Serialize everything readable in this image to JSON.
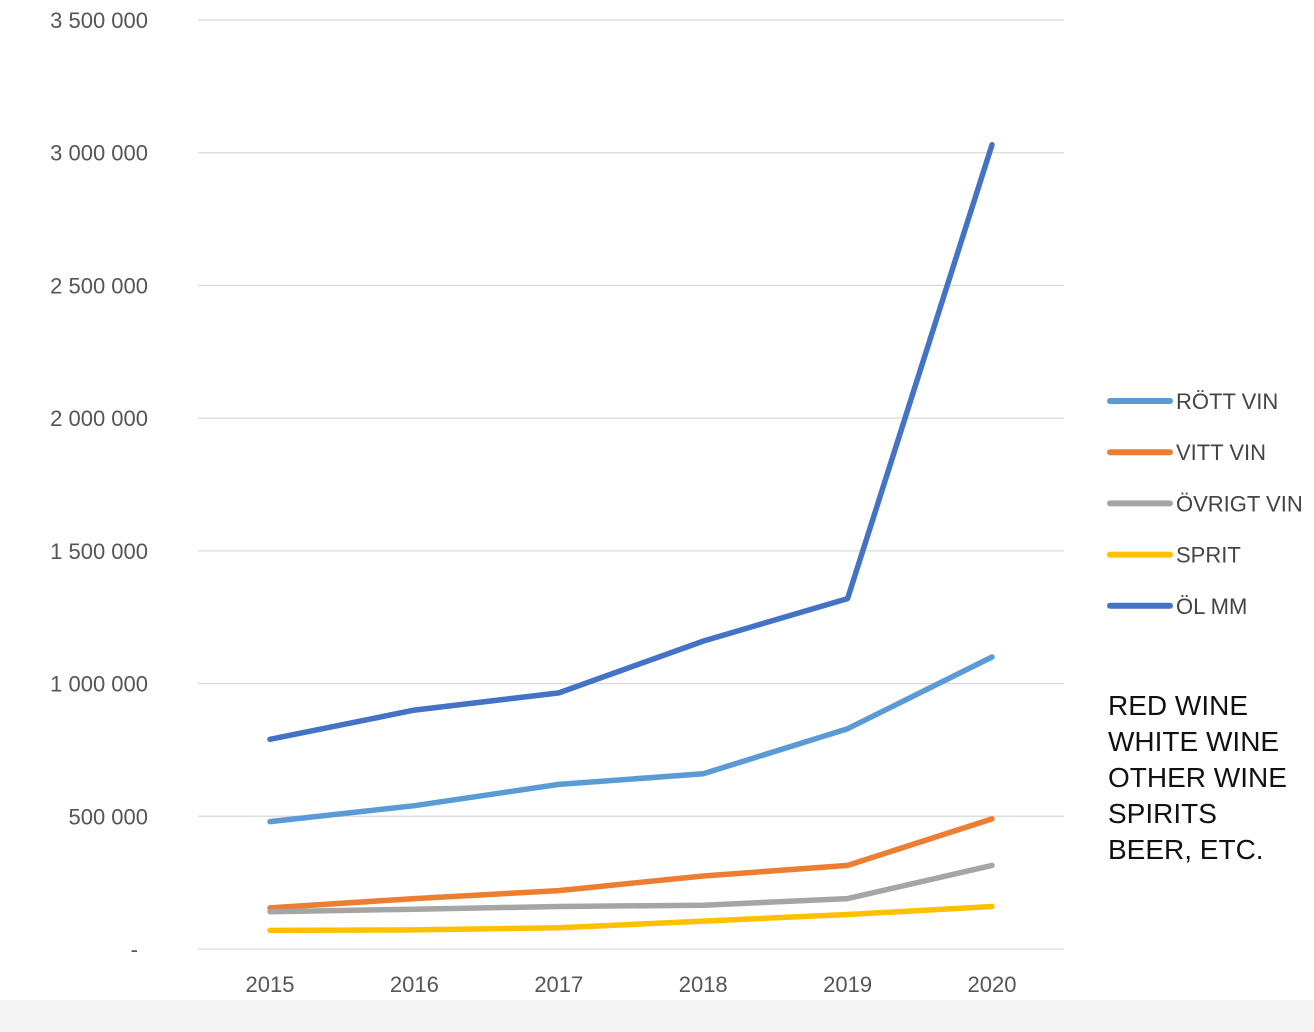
{
  "chart_data": {
    "type": "line",
    "categories": [
      "2015",
      "2016",
      "2017",
      "2018",
      "2019",
      "2020"
    ],
    "y_tick_labels": [
      "-",
      "500 000",
      "1 000 000",
      "1 500 000",
      "2 000 000",
      "2 500 000",
      "3 000 000",
      "3 500 000"
    ],
    "ylim": [
      0,
      3500000
    ],
    "grid": true,
    "legend_position": "right",
    "series": [
      {
        "name": "RÖTT VIN",
        "color": "#5b9bd5",
        "values": [
          480000,
          540000,
          620000,
          660000,
          830000,
          1100000
        ]
      },
      {
        "name": "VITT VIN",
        "color": "#ed7d31",
        "values": [
          155000,
          190000,
          220000,
          275000,
          315000,
          490000
        ]
      },
      {
        "name": "ÖVRIGT VIN",
        "color": "#a5a5a5",
        "values": [
          140000,
          150000,
          160000,
          165000,
          190000,
          315000
        ]
      },
      {
        "name": "SPRIT",
        "color": "#ffc000",
        "values": [
          70000,
          72000,
          80000,
          105000,
          130000,
          160000
        ]
      },
      {
        "name": "ÖL MM",
        "color": "#4472c4",
        "values": [
          790000,
          900000,
          965000,
          1160000,
          1320000,
          3030000
        ]
      }
    ]
  },
  "annotation": {
    "lines": [
      "RED WINE",
      "WHITE WINE",
      "OTHER WINE",
      "SPIRITS",
      "BEER, ETC."
    ]
  }
}
